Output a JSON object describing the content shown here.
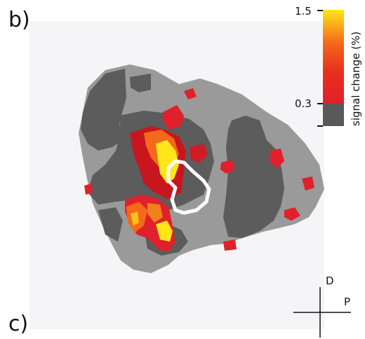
{
  "panels": {
    "top_label": "b)",
    "bottom_label": "c)"
  },
  "colorbar": {
    "title": "signal change (%)",
    "max_label": "1.5",
    "threshold_label": "0.3",
    "max_value": 1.5,
    "threshold_value": 0.3,
    "colors": {
      "low": "#e0202a",
      "mid": "#f46a1a",
      "high": "#ffe61a",
      "subthreshold": "#595959"
    }
  },
  "map": {
    "surface_colors": {
      "light": "#9a9a9a",
      "dark": "#5c5c5c",
      "background": "#f5f5f7"
    },
    "roi_outline_color": "#ffffff"
  },
  "orientation": {
    "dorsal": "D",
    "posterior": "P"
  }
}
